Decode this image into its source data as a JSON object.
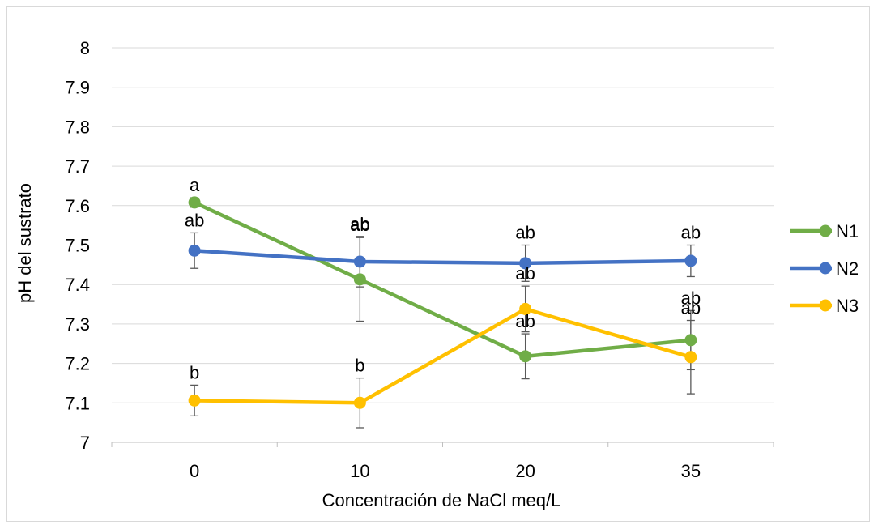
{
  "chart_data": {
    "type": "line",
    "title": "",
    "xlabel": "Concentración de NaCl meq/L",
    "ylabel": "pH del sustrato",
    "categories": [
      "0",
      "10",
      "20",
      "35"
    ],
    "ylim": [
      7,
      8
    ],
    "yticks": [
      "7",
      "7.1",
      "7.2",
      "7.3",
      "7.4",
      "7.5",
      "7.6",
      "7.7",
      "7.8",
      "7.9",
      "8"
    ],
    "grid": "horizontal",
    "legend_position": "right",
    "series": [
      {
        "name": "N1",
        "color": "#70AD47",
        "values": [
          7.608,
          7.413,
          7.218,
          7.259
        ],
        "errors": [
          0.012,
          0.106,
          0.057,
          0.075
        ],
        "labels": [
          "a",
          "ab",
          "ab",
          "ab"
        ]
      },
      {
        "name": "N2",
        "color": "#4472C4",
        "values": [
          7.486,
          7.458,
          7.454,
          7.46
        ],
        "errors": [
          0.045,
          0.064,
          0.046,
          0.04
        ],
        "labels": [
          "ab",
          "ab",
          "ab",
          "ab"
        ]
      },
      {
        "name": "N3",
        "color": "#FFC000",
        "values": [
          7.106,
          7.1,
          7.338,
          7.216
        ],
        "errors": [
          0.039,
          0.063,
          0.058,
          0.093
        ],
        "labels": [
          "b",
          "b",
          "ab",
          "ab"
        ]
      }
    ]
  }
}
